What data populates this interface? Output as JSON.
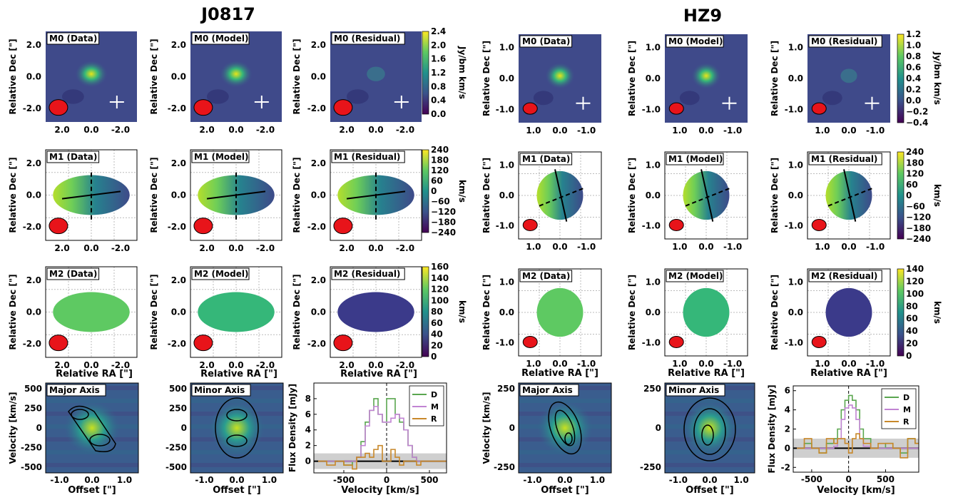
{
  "titles": {
    "left": "J0817",
    "right": "HZ9"
  },
  "axis_labels": {
    "dec": "Relative Dec [\"]",
    "ra": "Relative RA [\"]",
    "velocity": "Velocity [km/s]",
    "offset": "Offset [\"]",
    "flux": "Flux Density [mJy]",
    "vel_kms": "Velocity [km/s]"
  },
  "colorbar_units": {
    "m0": "Jy/bm km/s",
    "m1": "km/s",
    "m2": "km/s"
  },
  "j0817": {
    "panels": [
      [
        "M0 (Data)",
        "M0 (Model)",
        "M0 (Residual)"
      ],
      [
        "M1 (Data)",
        "M1 (Model)",
        "M1 (Residual)"
      ],
      [
        "M2 (Data)",
        "M2 (Model)",
        "M2 (Residual)"
      ]
    ],
    "dec_ticks": [
      "2.0",
      "0.0",
      "-2.0"
    ],
    "ra_ticks": [
      "2.0",
      "0.0",
      "-2.0"
    ],
    "cbar_m0": [
      "2.4",
      "2.0",
      "1.6",
      "1.2",
      "0.8",
      "0.4",
      "0.0"
    ],
    "cbar_m1": [
      "240",
      "180",
      "120",
      "60",
      "0",
      "−60",
      "−120",
      "−180",
      "−240"
    ],
    "cbar_m2": [
      "160",
      "140",
      "120",
      "100",
      "80",
      "60",
      "40",
      "20",
      "0"
    ]
  },
  "hz9": {
    "panels": [
      [
        "M0 (Data)",
        "M0 (Model)",
        "M0 (Residual)"
      ],
      [
        "M1 (Data)",
        "M1 (Model)",
        "M1 (Residual)"
      ],
      [
        "M2 (Data)",
        "M2 (Model)",
        "M2 (Residual)"
      ]
    ],
    "dec_ticks": [
      "1.0",
      "0.0",
      "-1.0"
    ],
    "ra_ticks": [
      "1.0",
      "0.0",
      "-1.0"
    ],
    "cbar_m0": [
      "1.2",
      "1.0",
      "0.8",
      "0.6",
      "0.4",
      "0.2",
      "0.0",
      "−0.2",
      "−0.4"
    ],
    "cbar_m1": [
      "240",
      "180",
      "120",
      "60",
      "0",
      "−60",
      "−120",
      "−180",
      "−240"
    ],
    "cbar_m2": [
      "140",
      "120",
      "100",
      "80",
      "60",
      "40",
      "20",
      "0"
    ]
  },
  "pv": {
    "labels": [
      "Major Axis",
      "Minor Axis",
      "Major Axis",
      "Minor Axis"
    ],
    "j0817_yticks": [
      "500",
      "250",
      "0",
      "-250",
      "-500"
    ],
    "hz9_yticks": [
      "250",
      "0",
      "-250"
    ],
    "xticks": [
      "-1.0",
      "0.0",
      "1.0"
    ]
  },
  "chart_data": [
    {
      "type": "line",
      "title": "",
      "xlabel": "Velocity [km/s]",
      "ylabel": "Flux Density [mJy]",
      "xlim": [
        -850,
        700
      ],
      "ylim": [
        -1.5,
        10
      ],
      "xticks": [
        "-500",
        "0",
        "500"
      ],
      "yticks": [
        "0",
        "2",
        "4",
        "6",
        "8"
      ],
      "x": [
        -800,
        -700,
        -600,
        -500,
        -400,
        -350,
        -300,
        -250,
        -200,
        -150,
        -100,
        -50,
        0,
        50,
        100,
        150,
        200,
        250,
        300,
        350,
        400,
        500,
        600,
        700
      ],
      "series": [
        {
          "name": "D",
          "color": "#5aa64f",
          "values": [
            0,
            0,
            0,
            -0.5,
            0,
            0.5,
            2.5,
            5,
            6.5,
            8,
            6,
            5,
            8,
            8,
            6,
            5,
            4,
            2,
            0.5,
            0,
            0,
            0,
            0,
            0
          ]
        },
        {
          "name": "M",
          "color": "#c184d3",
          "values": [
            0,
            0,
            0,
            0,
            0,
            0.5,
            2,
            4.5,
            6.5,
            7,
            6,
            5,
            5,
            5.5,
            6,
            5.5,
            4,
            2,
            0.5,
            0,
            0,
            0,
            0,
            0
          ]
        },
        {
          "name": "R",
          "color": "#c8882a",
          "values": [
            0,
            -0.5,
            0,
            -0.5,
            -1,
            0.5,
            0.5,
            1,
            0.5,
            1.5,
            2,
            0,
            0,
            1.5,
            0.5,
            -0.5,
            0,
            0,
            0,
            -0.5,
            0,
            0,
            0,
            0
          ]
        }
      ]
    },
    {
      "type": "line",
      "title": "",
      "xlabel": "Velocity [km/s]",
      "ylabel": "Flux Density [mJy]",
      "xlim": [
        -750,
        950
      ],
      "ylim": [
        -2.5,
        6.5
      ],
      "xticks": [
        "-500",
        "0",
        "500"
      ],
      "yticks": [
        "-2",
        "0",
        "2",
        "4",
        "6"
      ],
      "x": [
        -700,
        -600,
        -500,
        -400,
        -300,
        -200,
        -150,
        -100,
        -50,
        0,
        50,
        100,
        150,
        200,
        300,
        400,
        500,
        600,
        700,
        800,
        900
      ],
      "series": [
        {
          "name": "D",
          "color": "#5aa64f",
          "values": [
            0,
            0.5,
            0,
            -0.5,
            0.5,
            1,
            2,
            4,
            5,
            5.5,
            5,
            4,
            2,
            1,
            0,
            0,
            0.5,
            0,
            -0.5,
            1,
            0.5
          ]
        },
        {
          "name": "M",
          "color": "#c184d3",
          "values": [
            0,
            0,
            0,
            0,
            0,
            0.2,
            1,
            3,
            4.2,
            4.5,
            4.2,
            3,
            1,
            0.2,
            0,
            0,
            0,
            0,
            0,
            0,
            0
          ]
        },
        {
          "name": "R",
          "color": "#c8882a",
          "values": [
            0,
            1,
            0,
            -0.5,
            1,
            0.5,
            1,
            1,
            0.5,
            -0.5,
            1,
            1.5,
            1,
            0.5,
            0,
            0.5,
            0.5,
            0,
            -1,
            1,
            0.5
          ]
        }
      ]
    }
  ]
}
